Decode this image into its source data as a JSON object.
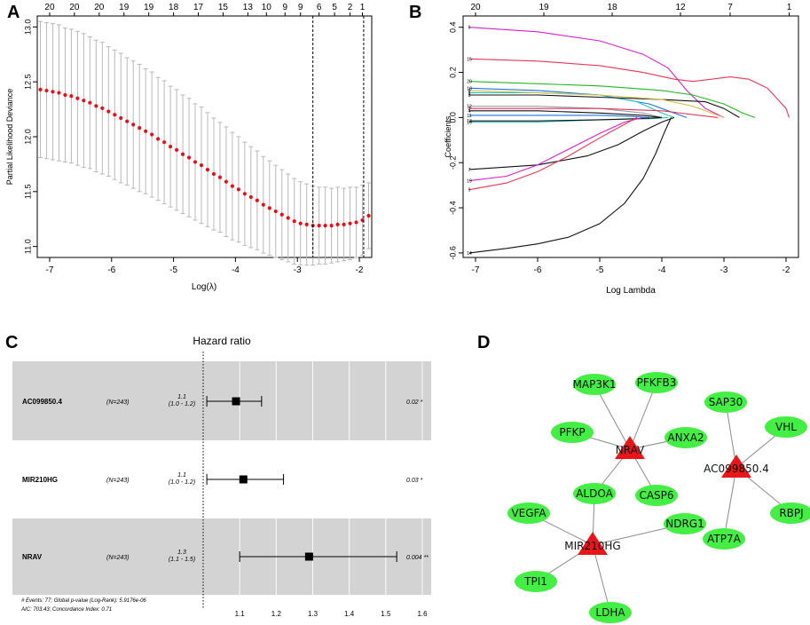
{
  "panels": {
    "A": "A",
    "B": "B",
    "C": "C",
    "D": "D"
  },
  "chart_data": [
    {
      "type": "scatter",
      "panel": "A",
      "title": "",
      "xlabel": "Log(λ)",
      "ylabel": "Partial Likelihood Deviance",
      "xlim": [
        -7.2,
        -1.8
      ],
      "ylim": [
        10.9,
        13.1
      ],
      "xticks": [
        "-7",
        "-6",
        "-5",
        "-4",
        "-3",
        "-2"
      ],
      "xtick_values": [
        -7,
        -6,
        -5,
        -4,
        -3,
        -2
      ],
      "yticks": [
        "11.0",
        "11.5",
        "12.0",
        "12.5",
        "13.0"
      ],
      "ytick_values": [
        11.0,
        11.5,
        12.0,
        12.5,
        13.0
      ],
      "top_axis_labels": [
        "20",
        "20",
        "20",
        "19",
        "19",
        "18",
        "17",
        "15",
        "13",
        "10",
        "9",
        "9",
        "6",
        "5",
        "2",
        "1"
      ],
      "top_axis_values": [
        -7.0,
        -6.6,
        -6.2,
        -5.8,
        -5.4,
        -5.0,
        -4.6,
        -4.2,
        -3.8,
        -3.5,
        -3.2,
        -2.95,
        -2.65,
        -2.4,
        -2.15,
        -1.95
      ],
      "lambda_min": -2.75,
      "lambda_1se": -1.93,
      "log_lambda": [
        -7.15,
        -7.05,
        -6.95,
        -6.85,
        -6.75,
        -6.65,
        -6.55,
        -6.45,
        -6.35,
        -6.25,
        -6.15,
        -6.05,
        -5.95,
        -5.85,
        -5.75,
        -5.65,
        -5.55,
        -5.45,
        -5.35,
        -5.25,
        -5.15,
        -5.05,
        -4.95,
        -4.85,
        -4.75,
        -4.65,
        -4.55,
        -4.45,
        -4.35,
        -4.25,
        -4.15,
        -4.05,
        -3.95,
        -3.85,
        -3.75,
        -3.65,
        -3.55,
        -3.45,
        -3.35,
        -3.25,
        -3.15,
        -3.05,
        -2.95,
        -2.85,
        -2.75,
        -2.65,
        -2.55,
        -2.45,
        -2.35,
        -2.25,
        -2.15,
        -2.05,
        -1.95,
        -1.85
      ],
      "deviance": [
        12.43,
        12.42,
        12.41,
        12.4,
        12.38,
        12.37,
        12.35,
        12.33,
        12.31,
        12.28,
        12.26,
        12.23,
        12.2,
        12.17,
        12.14,
        12.11,
        12.08,
        12.05,
        12.02,
        11.98,
        11.95,
        11.91,
        11.88,
        11.84,
        11.81,
        11.77,
        11.74,
        11.7,
        11.66,
        11.63,
        11.59,
        11.55,
        11.52,
        11.48,
        11.45,
        11.42,
        11.38,
        11.35,
        11.32,
        11.29,
        11.26,
        11.23,
        11.21,
        11.2,
        11.19,
        11.19,
        11.19,
        11.19,
        11.2,
        11.2,
        11.21,
        11.22,
        11.24,
        11.28
      ],
      "error": [
        0.62,
        0.62,
        0.62,
        0.62,
        0.61,
        0.61,
        0.61,
        0.61,
        0.6,
        0.6,
        0.6,
        0.59,
        0.59,
        0.59,
        0.58,
        0.58,
        0.58,
        0.57,
        0.57,
        0.56,
        0.56,
        0.55,
        0.55,
        0.54,
        0.54,
        0.53,
        0.53,
        0.52,
        0.51,
        0.5,
        0.5,
        0.49,
        0.48,
        0.47,
        0.46,
        0.45,
        0.44,
        0.43,
        0.42,
        0.41,
        0.4,
        0.39,
        0.38,
        0.37,
        0.36,
        0.35,
        0.35,
        0.34,
        0.34,
        0.33,
        0.33,
        0.32,
        0.32,
        0.3
      ]
    },
    {
      "type": "line",
      "panel": "B",
      "xlabel": "Log Lambda",
      "ylabel": "Coefficients",
      "xlim": [
        -7.2,
        -1.8
      ],
      "ylim": [
        -0.62,
        0.45
      ],
      "xticks": [
        "-7",
        "-6",
        "-5",
        "-4",
        "-3",
        "-2"
      ],
      "xtick_values": [
        -7,
        -6,
        -5,
        -4,
        -3,
        -2
      ],
      "yticks": [
        "-0.6",
        "-0.4",
        "-0.2",
        "0.0",
        "0.2",
        "0.4"
      ],
      "ytick_values": [
        -0.6,
        -0.4,
        -0.2,
        0.0,
        0.2,
        0.4
      ],
      "top_axis_labels": [
        "20",
        "19",
        "18",
        "12",
        "7",
        "1"
      ],
      "top_axis_values": [
        -7.0,
        -5.9,
        -4.8,
        -3.7,
        -2.9,
        -1.95
      ],
      "series": [
        {
          "name": "6",
          "color": "#d61fc6",
          "x": [
            -7.1,
            -6.0,
            -5.0,
            -4.3,
            -3.9,
            -3.6,
            -3.3,
            -3.0
          ],
          "y": [
            0.4,
            0.38,
            0.34,
            0.28,
            0.22,
            0.12,
            0.04,
            0.0
          ]
        },
        {
          "name": "15",
          "color": "#e8355a",
          "x": [
            -7.1,
            -6.0,
            -5.0,
            -4.3,
            -3.8,
            -3.5,
            -3.2,
            -2.9,
            -2.6,
            -2.3,
            -2.0,
            -1.95
          ],
          "y": [
            0.26,
            0.25,
            0.23,
            0.2,
            0.17,
            0.16,
            0.17,
            0.18,
            0.17,
            0.13,
            0.04,
            0.0
          ]
        },
        {
          "name": "20",
          "color": "#22b822",
          "x": [
            -7.1,
            -6.0,
            -5.0,
            -4.5,
            -4.0,
            -3.5,
            -3.0,
            -2.7,
            -2.5
          ],
          "y": [
            0.16,
            0.15,
            0.14,
            0.13,
            0.12,
            0.1,
            0.06,
            0.02,
            0.0
          ]
        },
        {
          "name": "10",
          "color": "#1a74d9",
          "x": [
            -7.1,
            -6.0,
            -5.0,
            -4.2,
            -3.8,
            -3.6
          ],
          "y": [
            0.13,
            0.12,
            0.1,
            0.06,
            0.02,
            0.0
          ]
        },
        {
          "name": "5",
          "color": "#23c2c2",
          "x": [
            -7.1,
            -6.0,
            -5.0,
            -4.4,
            -4.0,
            -3.8
          ],
          "y": [
            0.11,
            0.11,
            0.1,
            0.07,
            0.02,
            0.0
          ]
        },
        {
          "name": "8",
          "color": "#111111",
          "x": [
            -7.1,
            -6.0,
            -5.0,
            -4.0,
            -3.3,
            -3.0,
            -2.75
          ],
          "y": [
            0.1,
            0.1,
            0.09,
            0.08,
            0.07,
            0.04,
            0.0
          ]
        },
        {
          "name": "3",
          "color": "#d1c24a",
          "x": [
            -7.1,
            -6.0,
            -5.0,
            -4.0,
            -3.5,
            -3.2,
            -3.0
          ],
          "y": [
            0.12,
            0.11,
            0.1,
            0.08,
            0.05,
            0.02,
            0.0
          ]
        },
        {
          "name": "12",
          "color": "#9aa0a6",
          "x": [
            -7.1,
            -6.0,
            -5.0,
            -4.3,
            -4.0
          ],
          "y": [
            0.05,
            0.05,
            0.04,
            0.02,
            0.0
          ]
        },
        {
          "name": "2",
          "color": "#e8355a",
          "x": [
            -7.1,
            -6.0,
            -5.0,
            -4.0,
            -3.4,
            -3.1
          ],
          "y": [
            0.04,
            0.04,
            0.04,
            0.03,
            0.01,
            0.0
          ]
        },
        {
          "name": "4",
          "color": "#111111",
          "x": [
            -7.1,
            -6.0,
            -5.0,
            -4.3,
            -4.0
          ],
          "y": [
            0.03,
            0.03,
            0.02,
            0.01,
            0.0
          ]
        },
        {
          "name": "11",
          "color": "#1a74d9",
          "x": [
            -7.1,
            -6.0,
            -5.0,
            -4.5,
            -4.2
          ],
          "y": [
            0.01,
            0.01,
            0.01,
            0.005,
            0.0
          ]
        },
        {
          "name": "16",
          "color": "#23c2c2",
          "x": [
            -7.1,
            -6.0,
            -5.0,
            -4.2,
            -3.9
          ],
          "y": [
            -0.02,
            -0.02,
            -0.01,
            -0.005,
            0.0
          ]
        },
        {
          "name": "13",
          "color": "#111111",
          "x": [
            -7.1,
            -6.0,
            -5.0,
            -4.4,
            -4.0
          ],
          "y": [
            -0.015,
            -0.015,
            -0.01,
            -0.005,
            0.0
          ]
        },
        {
          "name": "7",
          "color": "#111111",
          "x": [
            -7.1,
            -6.0,
            -5.2,
            -4.7,
            -4.3,
            -4.0,
            -3.8
          ],
          "y": [
            -0.23,
            -0.21,
            -0.17,
            -0.12,
            -0.06,
            -0.02,
            0.0
          ]
        },
        {
          "name": "19",
          "color": "#d61fc6",
          "x": [
            -7.1,
            -6.5,
            -6.0,
            -5.5,
            -5.0,
            -4.6,
            -4.3
          ],
          "y": [
            -0.28,
            -0.26,
            -0.21,
            -0.14,
            -0.07,
            -0.02,
            0.0
          ]
        },
        {
          "name": "9",
          "color": "#e8355a",
          "x": [
            -7.1,
            -6.5,
            -6.0,
            -5.5,
            -5.0,
            -4.6,
            -4.4
          ],
          "y": [
            -0.32,
            -0.29,
            -0.24,
            -0.17,
            -0.09,
            -0.03,
            0.0
          ]
        },
        {
          "name": "14",
          "color": "#111111",
          "x": [
            -7.1,
            -6.5,
            -6.0,
            -5.5,
            -5.0,
            -4.6,
            -4.3,
            -4.1,
            -3.95,
            -3.85
          ],
          "y": [
            -0.6,
            -0.58,
            -0.56,
            -0.53,
            -0.47,
            -0.38,
            -0.27,
            -0.16,
            -0.06,
            0.0
          ]
        }
      ]
    },
    {
      "type": "table",
      "panel": "C",
      "title": "Hazard ratio",
      "xlim": [
        1.0,
        1.62
      ],
      "xticks": [
        "1.1",
        "1.2",
        "1.3",
        "1.4",
        "1.5",
        "1.6"
      ],
      "xtick_values": [
        1.1,
        1.2,
        1.3,
        1.4,
        1.5,
        1.6
      ],
      "reference": 1.0,
      "rows": [
        {
          "name": "AC099850.4",
          "n": "(N=243)",
          "hr": "1.1",
          "ci": "(1.0 - 1.2)",
          "hr_value": 1.09,
          "ci_low": 1.01,
          "ci_high": 1.16,
          "p": "0.02 *"
        },
        {
          "name": "MIR210HG",
          "n": "(N=243)",
          "hr": "1.1",
          "ci": "(1.0 - 1.2)",
          "hr_value": 1.11,
          "ci_low": 1.01,
          "ci_high": 1.22,
          "p": "0.03 *"
        },
        {
          "name": "NRAV",
          "n": "(N=243)",
          "hr": "1.3",
          "ci": "(1.1 - 1.5)",
          "hr_value": 1.29,
          "ci_low": 1.1,
          "ci_high": 1.53,
          "p": "0.004 **"
        }
      ],
      "footer_line1": "# Events: 77; Global p-value (Log-Rank): 5.9176e-06",
      "footer_line2": "AIC: 703.43; Concordance Index: 0.71"
    }
  ],
  "network": {
    "hubs": [
      {
        "id": "NRAV",
        "label": "NRAV"
      },
      {
        "id": "MIR210HG",
        "label": "MIR210HG"
      },
      {
        "id": "AC099850.4",
        "label": "AC099850.4"
      }
    ],
    "genes": [
      {
        "id": "MAP3K1",
        "label": "MAP3K1"
      },
      {
        "id": "PFKFB3",
        "label": "PFKFB3"
      },
      {
        "id": "PFKP",
        "label": "PFKP"
      },
      {
        "id": "ANXA2",
        "label": "ANXA2"
      },
      {
        "id": "ALDOA",
        "label": "ALDOA"
      },
      {
        "id": "CASP6",
        "label": "CASP6"
      },
      {
        "id": "VEGFA",
        "label": "VEGFA"
      },
      {
        "id": "NDRG1",
        "label": "NDRG1"
      },
      {
        "id": "TPI1",
        "label": "TPI1"
      },
      {
        "id": "LDHA",
        "label": "LDHA"
      },
      {
        "id": "SAP30",
        "label": "SAP30"
      },
      {
        "id": "VHL",
        "label": "VHL"
      },
      {
        "id": "RBPJ",
        "label": "RBPJ"
      },
      {
        "id": "ATP7A",
        "label": "ATP7A"
      }
    ],
    "edges": [
      [
        "NRAV",
        "MAP3K1"
      ],
      [
        "NRAV",
        "PFKFB3"
      ],
      [
        "NRAV",
        "PFKP"
      ],
      [
        "NRAV",
        "ANXA2"
      ],
      [
        "NRAV",
        "ALDOA"
      ],
      [
        "NRAV",
        "CASP6"
      ],
      [
        "MIR210HG",
        "ALDOA"
      ],
      [
        "MIR210HG",
        "VEGFA"
      ],
      [
        "MIR210HG",
        "NDRG1"
      ],
      [
        "MIR210HG",
        "TPI1"
      ],
      [
        "MIR210HG",
        "LDHA"
      ],
      [
        "AC099850.4",
        "SAP30"
      ],
      [
        "AC099850.4",
        "VHL"
      ],
      [
        "AC099850.4",
        "RBPJ"
      ],
      [
        "AC099850.4",
        "ATP7A"
      ]
    ],
    "colors": {
      "hub": "#e8151b",
      "gene": "#44ee44",
      "edge": "#8a8a8a"
    }
  }
}
